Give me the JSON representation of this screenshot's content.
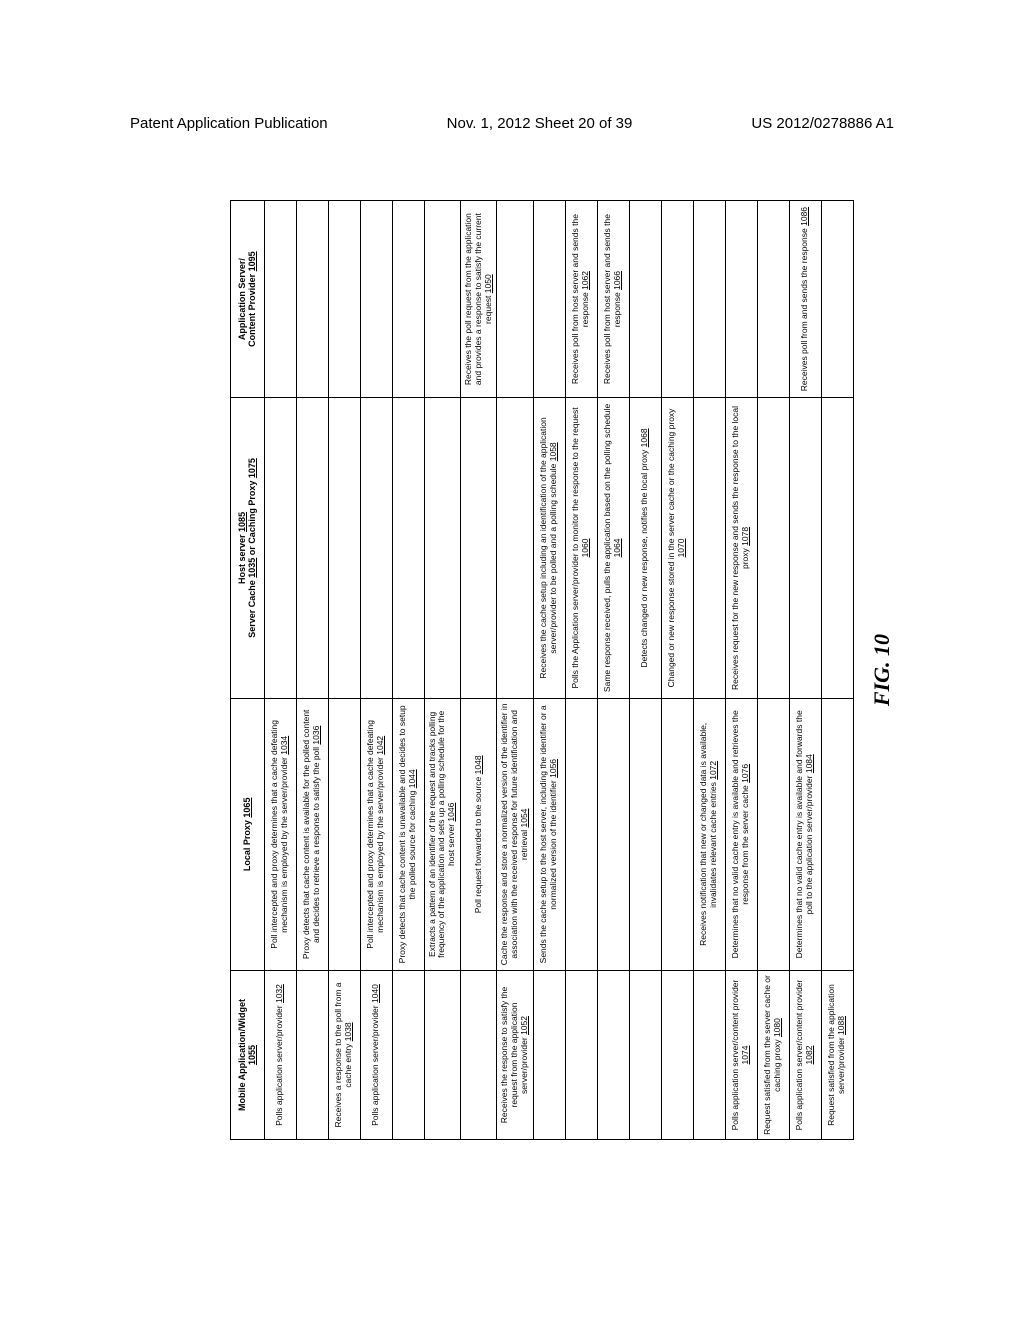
{
  "header": {
    "left": "Patent Application Publication",
    "center": "Nov. 1, 2012   Sheet 20 of 39",
    "right": "US 2012/0278886 A1"
  },
  "columns": [
    {
      "title_l1": "Mobile Application/Widget",
      "title_l2": "1055"
    },
    {
      "title_l1": "Local Proxy",
      "title_l2": "1065"
    },
    {
      "title_l1a": "Host server",
      "title_l1b": "1085",
      "title_l2a": "Server Cache",
      "title_l2b": "1035",
      "title_l2c": " or Caching Proxy",
      "title_l2d": "1075"
    },
    {
      "title_l1": "Application Server/",
      "title_l2a": "Content Provider",
      "title_l2b": "1095"
    }
  ],
  "rows": [
    {
      "c1": "Polls application server/provider",
      "c1r": "1032",
      "c2": "Poll intercepted and proxy determines that a cache defeating mechanism is employed by the server/provider",
      "c2r": "1034",
      "c3": "",
      "c4": ""
    },
    {
      "c1": "",
      "c2": "Proxy detects that cache content is available for the polled content and decides to retrieve a response to satisfy the poll",
      "c2r": "1036",
      "c3": "",
      "c4": ""
    },
    {
      "c1": "Receives a response to the poll from a cache entry",
      "c1r": "1038",
      "c2": "",
      "c3": "",
      "c4": ""
    },
    {
      "c1": "Polls application server/provider",
      "c1r": "1040",
      "c2": "Poll intercepted and proxy determines that a cache defeating mechanism is employed by the server/provider",
      "c2r": "1042",
      "c3": "",
      "c4": ""
    },
    {
      "c1": "",
      "c2": "Proxy detects that cache content is unavailable and decides to setup the polled source for caching",
      "c2r": "1044",
      "c3": "",
      "c4": ""
    },
    {
      "c1": "",
      "c2": "Extracts a pattern of an identifier of the request and tracks polling frequency of the application and sets up a polling schedule for the host server",
      "c2r": "1046",
      "c3": "",
      "c4": ""
    },
    {
      "c1": "",
      "c2": "Poll request forwarded to the source",
      "c2r": "1048",
      "c3": "",
      "c4": "Receives the poll request from the application and provides a response to satisfy the current request",
      "c4r": "1050"
    },
    {
      "c1": "Receives the response to satisfy the request from the application server/provider",
      "c1r": "1052",
      "c2": "Cache the response and store a normalized version of the identifier in association with the received response for future identification and retrieval",
      "c2r": "1054",
      "c3": "",
      "c4": ""
    },
    {
      "c1": "",
      "c2": "Sends the cache setup to the host server, including the identifier or a normalized version of the identifier",
      "c2r": "1056",
      "c3": "Receives the cache setup including an identification of the application server/provider to be polled and a polling schedule",
      "c3r": "1058",
      "c4": ""
    },
    {
      "c1": "",
      "c2": "",
      "c3": "Polls the Application server/provider to monitor the response to the request",
      "c3r": "1060",
      "c4": "Receives poll from host server and sends the response",
      "c4r": "1062"
    },
    {
      "c1": "",
      "c2": "",
      "c3": "Same response received, pulls the application based on the polling schedule",
      "c3r": "1064",
      "c4": "Receives poll from host server and sends the response",
      "c4r": "1066"
    },
    {
      "c1": "",
      "c2": "",
      "c3": "Detects changed or new response, notifies the local proxy",
      "c3r": "1068",
      "c4": ""
    },
    {
      "c1": "",
      "c2": "",
      "c3": "Changed or new response stored in the server cache or the caching proxy",
      "c3r": "1070",
      "c4": ""
    },
    {
      "c1": "",
      "c2": "Receives notification that new or changed data is available, invalidates relevant cache entries",
      "c2r": "1072",
      "c3": "",
      "c4": ""
    },
    {
      "c1": "Polls application server/content provider",
      "c1r": "1074",
      "c2": "Determines that no valid cache entry is available and retrieves the response from the server cache",
      "c2r": "1076",
      "c3": "Receives request for the new response and sends the response to the local proxy",
      "c3r": "1078",
      "c4": ""
    },
    {
      "c1": "Request satisfied from the server cache or caching proxy",
      "c1r": "1080",
      "c2": "",
      "c3": "",
      "c4": ""
    },
    {
      "c1": "Polls application server/content provider",
      "c1r": "1082",
      "c2": "Determines that no valid cache entry is available and forwards the poll to the application server/provider",
      "c2r": "1084",
      "c3": "",
      "c4": "Receives poll from and sends the response",
      "c4r": "1086"
    },
    {
      "c1": "Request satisfied from the application server/provider",
      "c1r": "1088",
      "c2": "",
      "c3": "",
      "c4": ""
    }
  ],
  "caption": "FIG. 10"
}
